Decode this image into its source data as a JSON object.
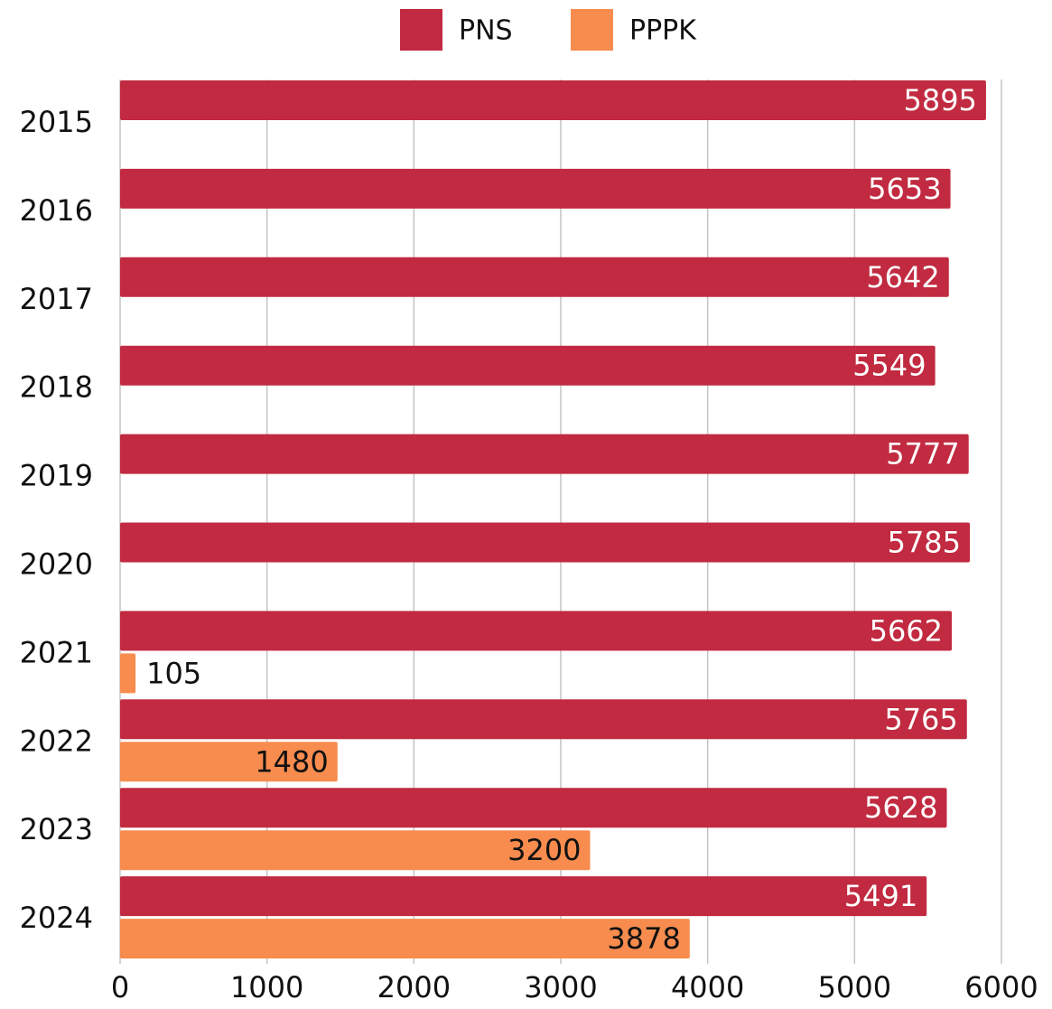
{
  "chart_data": {
    "type": "bar",
    "orientation": "horizontal",
    "categories": [
      "2015",
      "2016",
      "2017",
      "2018",
      "2019",
      "2020",
      "2021",
      "2022",
      "2023",
      "2024"
    ],
    "series": [
      {
        "name": "PNS",
        "color": "#c12a40",
        "values": [
          5895,
          5653,
          5642,
          5549,
          5777,
          5785,
          5662,
          5765,
          5628,
          5491
        ]
      },
      {
        "name": "PPPK",
        "color": "#f78c4e",
        "values": [
          null,
          null,
          null,
          null,
          null,
          null,
          105,
          1480,
          3200,
          3878
        ]
      }
    ],
    "xlim": [
      0,
      6000
    ],
    "xticks": [
      0,
      1000,
      2000,
      3000,
      4000,
      5000,
      6000
    ],
    "grid": true,
    "legend": "top"
  }
}
